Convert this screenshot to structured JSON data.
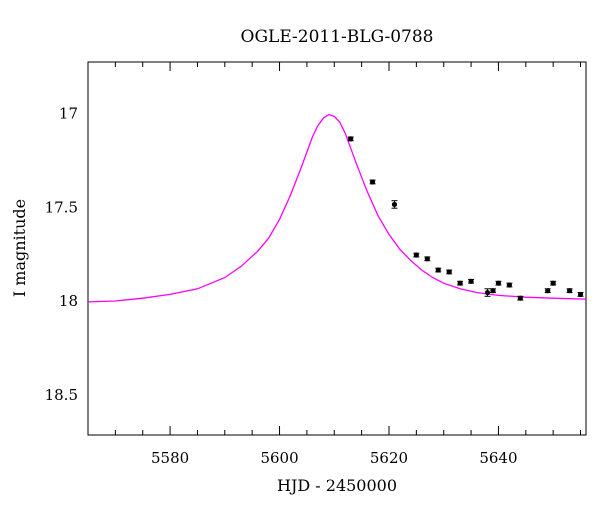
{
  "chart_data": {
    "type": "scatter",
    "title": "OGLE-2011-BLG-0788",
    "xlabel": "HJD - 2450000",
    "ylabel": "I magnitude",
    "xlim": [
      5565,
      5656
    ],
    "ylim": [
      18.72,
      16.73
    ],
    "y_inverted": true,
    "x_ticks": [
      5580,
      5600,
      5620,
      5640
    ],
    "y_ticks": [
      17,
      17.5,
      18,
      18.5
    ],
    "grid": false,
    "model_color": "#ff00ff",
    "point_color": "#000000",
    "series": [
      {
        "kind": "model",
        "x": [
          5565,
          5570,
          5575,
          5580,
          5585,
          5590,
          5593,
          5596,
          5598,
          5600,
          5602,
          5604,
          5605,
          5606,
          5607,
          5608,
          5609,
          5610,
          5611,
          5612,
          5613,
          5614,
          5616,
          5618,
          5620,
          5622,
          5624,
          5626,
          5628,
          5630,
          5633,
          5636,
          5640,
          5645,
          5650,
          5656
        ],
        "y": [
          18.01,
          18.005,
          17.99,
          17.97,
          17.94,
          17.88,
          17.82,
          17.74,
          17.67,
          17.57,
          17.44,
          17.29,
          17.21,
          17.13,
          17.07,
          17.03,
          17.01,
          17.02,
          17.05,
          17.11,
          17.19,
          17.27,
          17.42,
          17.55,
          17.65,
          17.73,
          17.79,
          17.84,
          17.88,
          17.91,
          17.94,
          17.96,
          17.975,
          17.985,
          17.99,
          17.995
        ]
      },
      {
        "kind": "observed",
        "x": [
          5613,
          5617,
          5621,
          5625,
          5627,
          5629,
          5631,
          5633,
          5635,
          5638,
          5639,
          5640,
          5642,
          5644,
          5649,
          5650,
          5653,
          5655
        ],
        "y": [
          17.14,
          17.37,
          17.49,
          17.76,
          17.78,
          17.84,
          17.85,
          17.91,
          17.9,
          17.96,
          17.95,
          17.91,
          17.92,
          17.99,
          17.95,
          17.91,
          17.95,
          17.97
        ],
        "err": [
          0.01,
          0.01,
          0.02,
          0.01,
          0.01,
          0.01,
          0.01,
          0.01,
          0.01,
          0.02,
          0.01,
          0.01,
          0.01,
          0.01,
          0.01,
          0.01,
          0.01,
          0.01
        ]
      }
    ]
  }
}
